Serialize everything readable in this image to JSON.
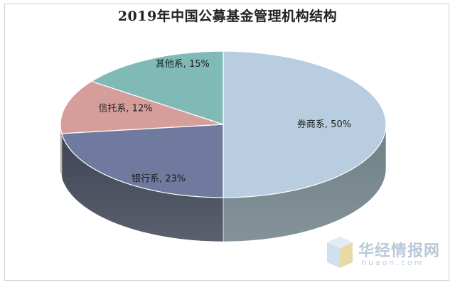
{
  "chart_data": {
    "type": "pie",
    "title": "2019年中国公募基金管理机构结构",
    "categories": [
      "券商系",
      "银行系",
      "信托系",
      "其他系"
    ],
    "values": [
      50,
      23,
      12,
      15
    ],
    "labels": [
      "券商系, 50%",
      "银行系, 23%",
      "信托系, 12%",
      "其他系, 15%"
    ],
    "colors": [
      "#b8cde0",
      "#6f7a9e",
      "#d69e9a",
      "#7fbab6"
    ],
    "side_colors": [
      "#6f8087",
      "#3e4454",
      "#7d5654",
      "#4d7270"
    ]
  },
  "watermark": {
    "brand": "华经情报网",
    "url": "huaon.com"
  }
}
